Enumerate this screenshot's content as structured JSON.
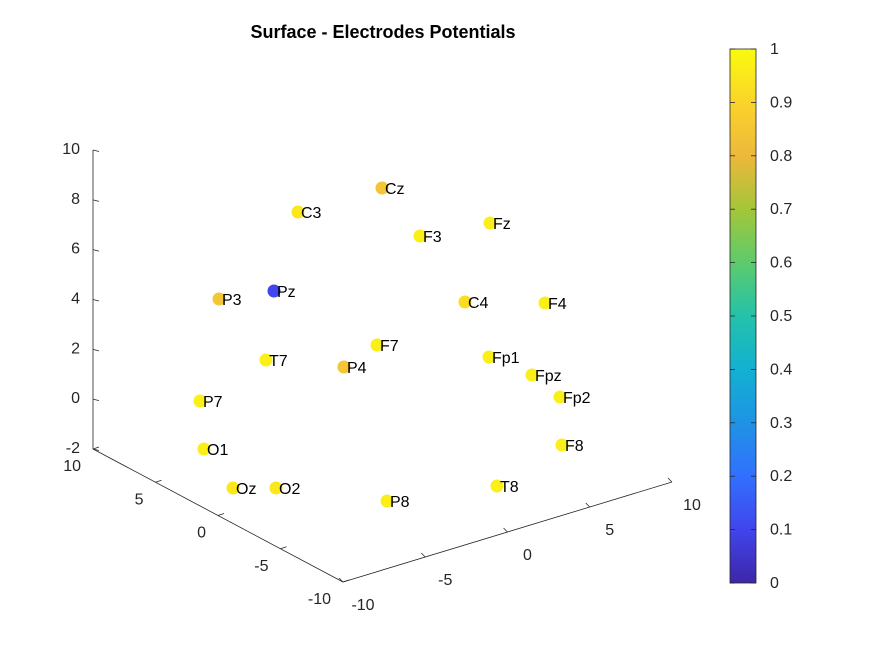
{
  "chart_data": {
    "type": "scatter",
    "title": "Surface - Electrodes Potentials",
    "xlabel": "",
    "ylabel": "",
    "zlabel": "",
    "view": "3d",
    "xlim": [
      -10,
      10
    ],
    "ylim": [
      -10,
      10
    ],
    "zlim": [
      -2,
      10
    ],
    "x_ticks": [
      "-10",
      "-5",
      "0",
      "5",
      "10"
    ],
    "y_ticks": [
      "-10",
      "-5",
      "0",
      "5",
      "10"
    ],
    "z_ticks": [
      "-2",
      "0",
      "2",
      "4",
      "6",
      "8",
      "10"
    ],
    "colorbar": {
      "colormap": "parula",
      "clim": [
        0,
        1
      ],
      "ticks": [
        "0",
        "0.1",
        "0.2",
        "0.3",
        "0.4",
        "0.5",
        "0.6",
        "0.7",
        "0.8",
        "0.9",
        "1"
      ]
    },
    "electrodes": [
      {
        "label": "Cz",
        "value": 0.85
      },
      {
        "label": "C3",
        "value": 0.95
      },
      {
        "label": "Fz",
        "value": 0.97
      },
      {
        "label": "F3",
        "value": 0.97
      },
      {
        "label": "P3",
        "value": 0.85
      },
      {
        "label": "Pz",
        "value": 0.1
      },
      {
        "label": "C4",
        "value": 0.92
      },
      {
        "label": "F4",
        "value": 0.97
      },
      {
        "label": "F7",
        "value": 0.97
      },
      {
        "label": "T7",
        "value": 0.97
      },
      {
        "label": "P4",
        "value": 0.85
      },
      {
        "label": "Fp1",
        "value": 0.97
      },
      {
        "label": "Fpz",
        "value": 0.97
      },
      {
        "label": "P7",
        "value": 0.97
      },
      {
        "label": "Fp2",
        "value": 0.97
      },
      {
        "label": "O1",
        "value": 0.97
      },
      {
        "label": "F8",
        "value": 0.97
      },
      {
        "label": "Oz",
        "value": 0.95
      },
      {
        "label": "O2",
        "value": 0.95
      },
      {
        "label": "T8",
        "value": 0.97
      },
      {
        "label": "P8",
        "value": 0.97
      }
    ]
  }
}
